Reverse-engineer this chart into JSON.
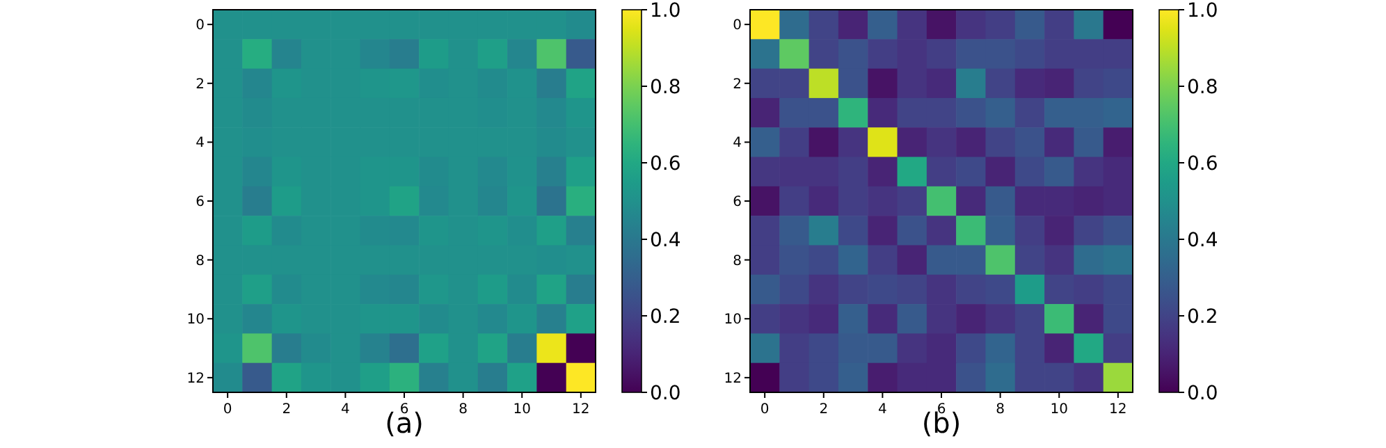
{
  "chart_data": [
    {
      "type": "heatmap",
      "xlabel": "(a)",
      "categories": [
        "0",
        null,
        "2",
        null,
        "4",
        null,
        "6",
        null,
        "8",
        null,
        "10",
        null,
        "12"
      ],
      "y_categories": [
        "0",
        null,
        "2",
        null,
        "4",
        null,
        "6",
        null,
        "8",
        null,
        "10",
        null,
        "12"
      ],
      "clim": [
        0,
        1
      ],
      "cticks": [
        {
          "value": 0,
          "label": "0.0"
        },
        {
          "value": 0.2,
          "label": "0.2"
        },
        {
          "value": 0.4,
          "label": "0.4"
        },
        {
          "value": 0.6,
          "label": "0.6"
        },
        {
          "value": 0.8,
          "label": "0.8"
        },
        {
          "value": 1,
          "label": "1.0"
        }
      ],
      "cells": [
        [
          0.5,
          0.5,
          0.5,
          0.5,
          0.5,
          0.5,
          0.5,
          0.5,
          0.5,
          0.5,
          0.5,
          0.5,
          0.48
        ],
        [
          0.5,
          0.62,
          0.45,
          0.5,
          0.5,
          0.46,
          0.42,
          0.55,
          0.5,
          0.56,
          0.46,
          0.72,
          0.28
        ],
        [
          0.5,
          0.46,
          0.52,
          0.5,
          0.5,
          0.52,
          0.53,
          0.49,
          0.5,
          0.48,
          0.51,
          0.42,
          0.58
        ],
        [
          0.5,
          0.48,
          0.5,
          0.5,
          0.5,
          0.5,
          0.5,
          0.5,
          0.5,
          0.49,
          0.5,
          0.47,
          0.52
        ],
        [
          0.5,
          0.49,
          0.5,
          0.5,
          0.5,
          0.5,
          0.5,
          0.5,
          0.5,
          0.5,
          0.5,
          0.48,
          0.5
        ],
        [
          0.5,
          0.46,
          0.52,
          0.5,
          0.5,
          0.52,
          0.52,
          0.48,
          0.5,
          0.47,
          0.51,
          0.43,
          0.56
        ],
        [
          0.5,
          0.42,
          0.55,
          0.5,
          0.5,
          0.52,
          0.58,
          0.47,
          0.5,
          0.46,
          0.52,
          0.38,
          0.63
        ],
        [
          0.5,
          0.55,
          0.48,
          0.5,
          0.5,
          0.48,
          0.47,
          0.52,
          0.5,
          0.52,
          0.49,
          0.56,
          0.43
        ],
        [
          0.5,
          0.5,
          0.5,
          0.5,
          0.5,
          0.5,
          0.5,
          0.5,
          0.5,
          0.5,
          0.5,
          0.49,
          0.5
        ],
        [
          0.5,
          0.56,
          0.48,
          0.5,
          0.5,
          0.47,
          0.46,
          0.53,
          0.5,
          0.55,
          0.48,
          0.58,
          0.42
        ],
        [
          0.5,
          0.46,
          0.52,
          0.5,
          0.5,
          0.52,
          0.52,
          0.48,
          0.5,
          0.47,
          0.52,
          0.43,
          0.57
        ],
        [
          0.52,
          0.72,
          0.42,
          0.48,
          0.5,
          0.44,
          0.36,
          0.57,
          0.5,
          0.58,
          0.42,
          0.97,
          0.0
        ],
        [
          0.48,
          0.28,
          0.58,
          0.52,
          0.5,
          0.56,
          0.64,
          0.43,
          0.5,
          0.42,
          0.57,
          0.0,
          1.0
        ]
      ]
    },
    {
      "type": "heatmap",
      "xlabel": "(b)",
      "categories": [
        "0",
        null,
        "2",
        null,
        "4",
        null,
        "6",
        null,
        "8",
        null,
        "10",
        null,
        "12"
      ],
      "y_categories": [
        "0",
        null,
        "2",
        null,
        "4",
        null,
        "6",
        null,
        "8",
        null,
        "10",
        null,
        "12"
      ],
      "clim": [
        0,
        1
      ],
      "cticks": [
        {
          "value": 0,
          "label": "0.0"
        },
        {
          "value": 0.2,
          "label": "0.2"
        },
        {
          "value": 0.4,
          "label": "0.4"
        },
        {
          "value": 0.6,
          "label": "0.6"
        },
        {
          "value": 0.8,
          "label": "0.8"
        },
        {
          "value": 1,
          "label": "1.0"
        }
      ],
      "cells": [
        [
          1.0,
          0.35,
          0.2,
          0.1,
          0.3,
          0.15,
          0.05,
          0.15,
          0.18,
          0.28,
          0.18,
          0.4,
          0.0
        ],
        [
          0.38,
          0.75,
          0.2,
          0.25,
          0.18,
          0.15,
          0.18,
          0.25,
          0.25,
          0.22,
          0.18,
          0.18,
          0.18
        ],
        [
          0.2,
          0.2,
          0.9,
          0.25,
          0.05,
          0.15,
          0.12,
          0.42,
          0.2,
          0.12,
          0.1,
          0.2,
          0.22
        ],
        [
          0.1,
          0.25,
          0.25,
          0.65,
          0.12,
          0.2,
          0.2,
          0.25,
          0.3,
          0.2,
          0.3,
          0.3,
          0.32
        ],
        [
          0.3,
          0.18,
          0.05,
          0.15,
          0.95,
          0.1,
          0.15,
          0.1,
          0.2,
          0.25,
          0.12,
          0.28,
          0.08
        ],
        [
          0.16,
          0.15,
          0.15,
          0.18,
          0.1,
          0.6,
          0.18,
          0.22,
          0.1,
          0.22,
          0.28,
          0.15,
          0.12
        ],
        [
          0.05,
          0.18,
          0.12,
          0.18,
          0.15,
          0.18,
          0.7,
          0.12,
          0.28,
          0.12,
          0.12,
          0.1,
          0.12
        ],
        [
          0.18,
          0.28,
          0.42,
          0.22,
          0.1,
          0.25,
          0.15,
          0.68,
          0.3,
          0.18,
          0.1,
          0.2,
          0.25
        ],
        [
          0.18,
          0.25,
          0.22,
          0.32,
          0.18,
          0.1,
          0.28,
          0.28,
          0.72,
          0.2,
          0.15,
          0.35,
          0.38
        ],
        [
          0.28,
          0.22,
          0.15,
          0.2,
          0.22,
          0.2,
          0.15,
          0.2,
          0.22,
          0.55,
          0.2,
          0.18,
          0.22
        ],
        [
          0.18,
          0.15,
          0.12,
          0.3,
          0.12,
          0.28,
          0.15,
          0.1,
          0.15,
          0.2,
          0.68,
          0.1,
          0.22
        ],
        [
          0.38,
          0.18,
          0.22,
          0.28,
          0.28,
          0.15,
          0.12,
          0.22,
          0.32,
          0.2,
          0.1,
          0.6,
          0.18
        ],
        [
          0.0,
          0.18,
          0.22,
          0.3,
          0.08,
          0.12,
          0.12,
          0.25,
          0.35,
          0.2,
          0.2,
          0.15,
          0.85
        ]
      ]
    }
  ]
}
